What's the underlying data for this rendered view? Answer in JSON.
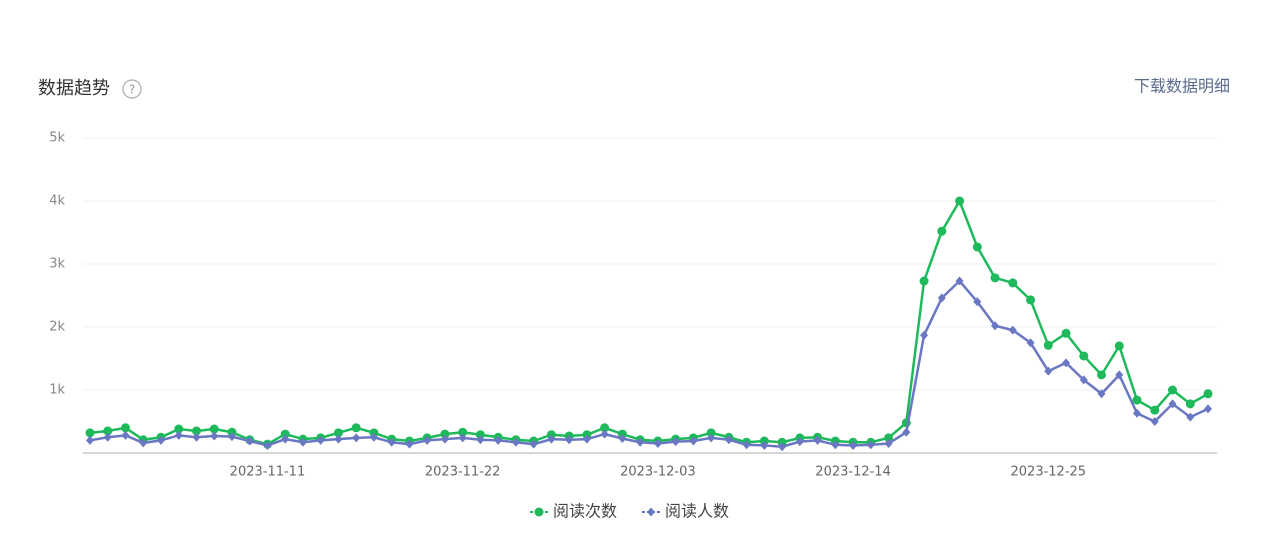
{
  "chart_data": {
    "type": "line",
    "title": "数据趋势",
    "help": "?",
    "action": "下载数据明细",
    "categories": [
      null,
      null,
      null,
      null,
      null,
      null,
      null,
      null,
      null,
      null,
      "2023-11-11",
      null,
      null,
      null,
      null,
      null,
      null,
      null,
      null,
      null,
      null,
      "2023-11-22",
      null,
      null,
      null,
      null,
      null,
      null,
      null,
      null,
      null,
      null,
      "2023-12-03",
      null,
      null,
      null,
      null,
      null,
      null,
      null,
      null,
      null,
      null,
      "2023-12-14",
      null,
      null,
      null,
      null,
      null,
      null,
      null,
      null,
      null,
      null,
      "2023-12-25",
      null,
      null,
      null,
      null,
      null,
      null,
      null,
      null,
      null
    ],
    "series": [
      {
        "name": "阅读次数",
        "color": "#1db95a",
        "marker": "circle",
        "values": [
          320,
          350,
          400,
          210,
          250,
          380,
          350,
          380,
          330,
          210,
          140,
          300,
          220,
          240,
          320,
          400,
          320,
          220,
          190,
          240,
          300,
          330,
          290,
          250,
          210,
          190,
          290,
          270,
          290,
          400,
          300,
          210,
          190,
          220,
          240,
          320,
          250,
          170,
          190,
          170,
          240,
          250,
          190,
          170,
          170,
          240,
          480,
          2730,
          3520,
          4000,
          3270,
          2780,
          2700,
          2430,
          1710,
          1900,
          1540,
          1240,
          1700,
          840,
          680,
          1000,
          780,
          940
        ]
      },
      {
        "name": "阅读人数",
        "color": "#6a77c2",
        "marker": "diamond",
        "values": [
          200,
          250,
          280,
          160,
          200,
          280,
          250,
          270,
          260,
          190,
          120,
          220,
          170,
          200,
          220,
          240,
          250,
          170,
          140,
          200,
          220,
          240,
          210,
          200,
          170,
          140,
          220,
          210,
          220,
          300,
          230,
          170,
          150,
          180,
          190,
          240,
          210,
          130,
          120,
          100,
          180,
          200,
          130,
          120,
          130,
          150,
          330,
          1870,
          2460,
          2730,
          2400,
          2020,
          1950,
          1750,
          1300,
          1430,
          1160,
          940,
          1240,
          630,
          500,
          780,
          570,
          700
        ]
      }
    ],
    "ylim": [
      0,
      5000
    ],
    "yticks": [
      {
        "value": 1000,
        "label": "1k"
      },
      {
        "value": 2000,
        "label": "2k"
      },
      {
        "value": 3000,
        "label": "3k"
      },
      {
        "value": 4000,
        "label": "4k"
      },
      {
        "value": 5000,
        "label": "5k"
      }
    ],
    "grid": true
  }
}
